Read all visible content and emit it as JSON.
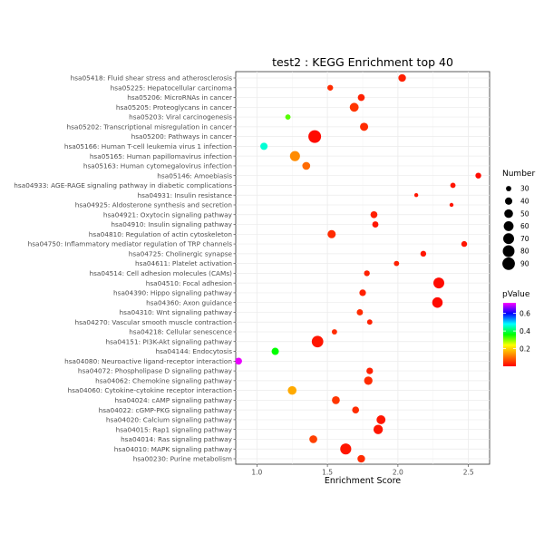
{
  "chart_data": {
    "type": "scatter",
    "title": "test2 : KEGG Enrichment top 40",
    "xlabel": "Enrichment Score",
    "ylabel": "",
    "xlim": [
      0.85,
      2.65
    ],
    "x_ticks": [
      1.0,
      1.5,
      2.0,
      2.5
    ],
    "x_tick_labels": [
      "1.0",
      "1.5",
      "2.0",
      "2.5"
    ],
    "grid": true,
    "legend_position": "right",
    "points": [
      {
        "label": "hsa05418: Fluid shear stress and atherosclerosis",
        "x": 2.03,
        "number": 42,
        "pvalue": 0.03
      },
      {
        "label": "hsa05225: Hepatocellular carcinoma",
        "x": 1.52,
        "number": 32,
        "pvalue": 0.04
      },
      {
        "label": "hsa05206: MicroRNAs in cancer",
        "x": 1.74,
        "number": 38,
        "pvalue": 0.03
      },
      {
        "label": "hsa05205: Proteoglycans in cancer",
        "x": 1.69,
        "number": 52,
        "pvalue": 0.05
      },
      {
        "label": "hsa05203: Viral carcinogenesis",
        "x": 1.22,
        "number": 30,
        "pvalue": 0.32
      },
      {
        "label": "hsa05202: Transcriptional misregulation in cancer",
        "x": 1.76,
        "number": 46,
        "pvalue": 0.04
      },
      {
        "label": "hsa05200: Pathways in cancer",
        "x": 1.41,
        "number": 92,
        "pvalue": 0.01
      },
      {
        "label": "hsa05166: Human T-cell leukemia virus 1 infection",
        "x": 1.05,
        "number": 40,
        "pvalue": 0.46
      },
      {
        "label": "hsa05165: Human papillomavirus infection",
        "x": 1.27,
        "number": 62,
        "pvalue": 0.13
      },
      {
        "label": "hsa05163: Human cytomegalovirus infection",
        "x": 1.35,
        "number": 44,
        "pvalue": 0.1
      },
      {
        "label": "hsa05146: Amoebiasis",
        "x": 2.57,
        "number": 32,
        "pvalue": 0.01
      },
      {
        "label": "hsa04933: AGE-RAGE signaling pathway in diabetic complications",
        "x": 2.39,
        "number": 30,
        "pvalue": 0.02
      },
      {
        "label": "hsa04931: Insulin resistance",
        "x": 2.13,
        "number": 26,
        "pvalue": 0.02
      },
      {
        "label": "hsa04925: Aldosterone synthesis and secretion",
        "x": 2.38,
        "number": 26,
        "pvalue": 0.02
      },
      {
        "label": "hsa04921: Oxytocin signaling pathway",
        "x": 1.83,
        "number": 38,
        "pvalue": 0.03
      },
      {
        "label": "hsa04910: Insulin signaling pathway",
        "x": 1.84,
        "number": 34,
        "pvalue": 0.02
      },
      {
        "label": "hsa04810: Regulation of actin cytoskeleton",
        "x": 1.53,
        "number": 46,
        "pvalue": 0.04
      },
      {
        "label": "hsa04750: Inflammatory mediator regulation of TRP channels",
        "x": 2.47,
        "number": 32,
        "pvalue": 0.02
      },
      {
        "label": "hsa04725: Cholinergic synapse",
        "x": 2.18,
        "number": 32,
        "pvalue": 0.02
      },
      {
        "label": "hsa04611: Platelet activation",
        "x": 1.99,
        "number": 30,
        "pvalue": 0.03
      },
      {
        "label": "hsa04514: Cell adhesion molecules (CAMs)",
        "x": 1.78,
        "number": 32,
        "pvalue": 0.03
      },
      {
        "label": "hsa04510: Focal adhesion",
        "x": 2.29,
        "number": 70,
        "pvalue": 0.01
      },
      {
        "label": "hsa04390: Hippo signaling pathway",
        "x": 1.75,
        "number": 36,
        "pvalue": 0.03
      },
      {
        "label": "hsa04360: Axon guidance",
        "x": 2.28,
        "number": 66,
        "pvalue": 0.01
      },
      {
        "label": "hsa04310: Wnt signaling pathway",
        "x": 1.73,
        "number": 34,
        "pvalue": 0.04
      },
      {
        "label": "hsa04270: Vascular smooth muscle contraction",
        "x": 1.8,
        "number": 30,
        "pvalue": 0.03
      },
      {
        "label": "hsa04218: Cellular senescence",
        "x": 1.55,
        "number": 30,
        "pvalue": 0.04
      },
      {
        "label": "hsa04151: PI3K-Akt signaling pathway",
        "x": 1.43,
        "number": 78,
        "pvalue": 0.02
      },
      {
        "label": "hsa04144: Endocytosis",
        "x": 1.13,
        "number": 40,
        "pvalue": 0.36
      },
      {
        "label": "hsa04080: Neuroactive ligand-receptor interaction",
        "x": 0.87,
        "number": 38,
        "pvalue": 0.71
      },
      {
        "label": "hsa04072: Phospholipase D signaling pathway",
        "x": 1.8,
        "number": 36,
        "pvalue": 0.03
      },
      {
        "label": "hsa04062: Chemokine signaling pathway",
        "x": 1.79,
        "number": 48,
        "pvalue": 0.04
      },
      {
        "label": "hsa04060: Cytokine-cytokine receptor interaction",
        "x": 1.25,
        "number": 50,
        "pvalue": 0.16
      },
      {
        "label": "hsa04024: cAMP signaling pathway",
        "x": 1.56,
        "number": 44,
        "pvalue": 0.05
      },
      {
        "label": "hsa04022: cGMP-PKG signaling pathway",
        "x": 1.7,
        "number": 38,
        "pvalue": 0.04
      },
      {
        "label": "hsa04020: Calcium signaling pathway",
        "x": 1.88,
        "number": 52,
        "pvalue": 0.02
      },
      {
        "label": "hsa04015: Rap1 signaling pathway",
        "x": 1.86,
        "number": 56,
        "pvalue": 0.02
      },
      {
        "label": "hsa04014: Ras signaling pathway",
        "x": 1.4,
        "number": 44,
        "pvalue": 0.06
      },
      {
        "label": "hsa04010: MAPK signaling pathway",
        "x": 1.63,
        "number": 72,
        "pvalue": 0.02
      },
      {
        "label": "hsa00230: Purine metabolism",
        "x": 1.74,
        "number": 42,
        "pvalue": 0.04
      }
    ],
    "size_legend": {
      "title": "Number",
      "values": [
        30,
        40,
        50,
        60,
        70,
        80,
        90
      ],
      "labels": [
        "30",
        "40",
        "50",
        "60",
        "70",
        "80",
        "90"
      ]
    },
    "color_legend": {
      "title": "pValue",
      "range": [
        0,
        0.72
      ],
      "ticks": [
        0.2,
        0.4,
        0.6
      ],
      "tick_labels": [
        "0.2",
        "0.4",
        "0.6"
      ],
      "colors": [
        "#ff0000",
        "#ff8000",
        "#ffff00",
        "#00ff00",
        "#00ffff",
        "#0000ff",
        "#ff00ff"
      ]
    }
  }
}
